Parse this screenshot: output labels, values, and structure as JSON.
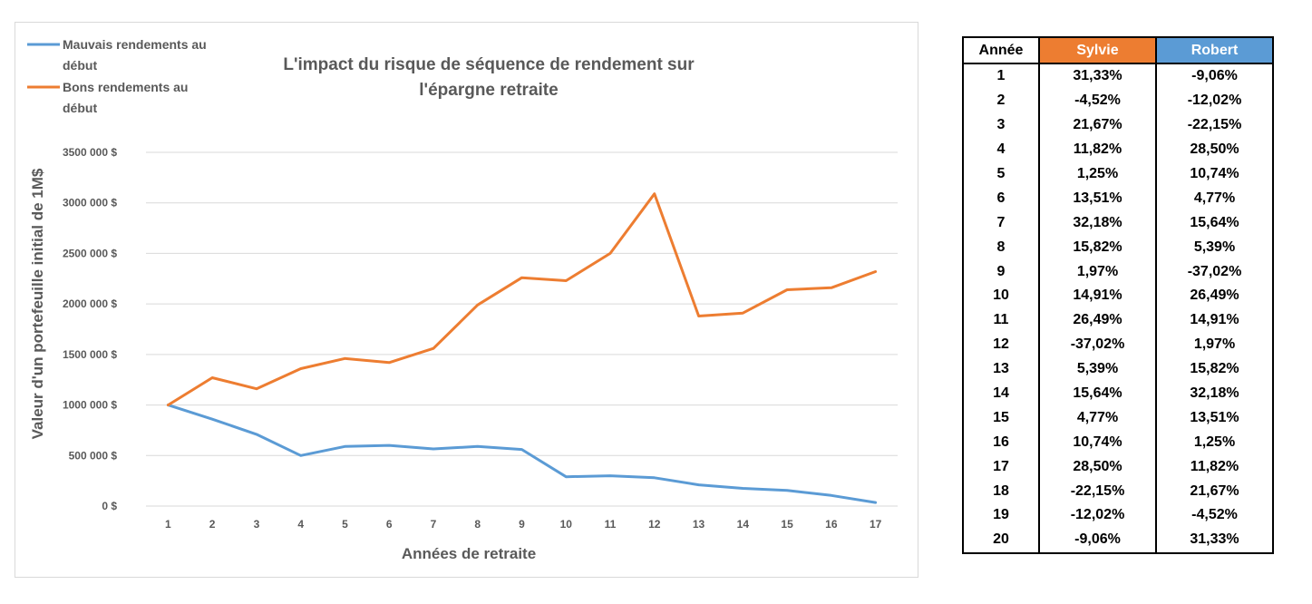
{
  "chart_data": {
    "type": "line",
    "title": "L'impact du risque de séquence de rendement sur l'épargne retraite",
    "title_lines": [
      "L'impact du risque de séquence de rendement sur",
      "l'épargne retraite"
    ],
    "xlabel": "Années de retraite",
    "ylabel": "Valeur d'un portefeuille initial de 1M$",
    "x": [
      1,
      2,
      3,
      4,
      5,
      6,
      7,
      8,
      9,
      10,
      11,
      12,
      13,
      14,
      15,
      16,
      17
    ],
    "ylim": [
      0,
      3500000
    ],
    "yticks": [
      0,
      500000,
      1000000,
      1500000,
      2000000,
      2500000,
      3000000,
      3500000
    ],
    "ytick_labels": [
      "0 $",
      "500 000 $",
      "1000 000 $",
      "1500 000 $",
      "2000 000 $",
      "2500 000 $",
      "3000 000 $",
      "3500 000 $"
    ],
    "grid": true,
    "legend_position": "top-left",
    "series": [
      {
        "name": "Mauvais rendements au début",
        "legend_lines": [
          "Mauvais rendements au",
          "début"
        ],
        "color": "#5b9bd5",
        "values": [
          1000000,
          860000,
          710000,
          500000,
          590000,
          600000,
          565000,
          590000,
          560000,
          290000,
          300000,
          280000,
          210000,
          175000,
          155000,
          105000,
          35000
        ]
      },
      {
        "name": "Bons rendements au début",
        "legend_lines": [
          "Bons rendements au",
          "début"
        ],
        "color": "#ed7d31",
        "values": [
          1000000,
          1270000,
          1160000,
          1360000,
          1460000,
          1420000,
          1560000,
          1990000,
          2260000,
          2230000,
          2500000,
          3090000,
          1880000,
          1910000,
          2140000,
          2160000,
          2320000
        ]
      }
    ]
  },
  "table": {
    "headers": {
      "year": "Année",
      "sylvie": "Sylvie",
      "robert": "Robert"
    },
    "colors": {
      "sylvie": "#ed7d31",
      "robert": "#5b9bd5"
    },
    "rows": [
      {
        "year": "1",
        "sylvie": "31,33%",
        "robert": "-9,06%"
      },
      {
        "year": "2",
        "sylvie": "-4,52%",
        "robert": "-12,02%"
      },
      {
        "year": "3",
        "sylvie": "21,67%",
        "robert": "-22,15%"
      },
      {
        "year": "4",
        "sylvie": "11,82%",
        "robert": "28,50%"
      },
      {
        "year": "5",
        "sylvie": "1,25%",
        "robert": "10,74%"
      },
      {
        "year": "6",
        "sylvie": "13,51%",
        "robert": "4,77%"
      },
      {
        "year": "7",
        "sylvie": "32,18%",
        "robert": "15,64%"
      },
      {
        "year": "8",
        "sylvie": "15,82%",
        "robert": "5,39%"
      },
      {
        "year": "9",
        "sylvie": "1,97%",
        "robert": "-37,02%"
      },
      {
        "year": "10",
        "sylvie": "14,91%",
        "robert": "26,49%"
      },
      {
        "year": "11",
        "sylvie": "26,49%",
        "robert": "14,91%"
      },
      {
        "year": "12",
        "sylvie": "-37,02%",
        "robert": "1,97%"
      },
      {
        "year": "13",
        "sylvie": "5,39%",
        "robert": "15,82%"
      },
      {
        "year": "14",
        "sylvie": "15,64%",
        "robert": "32,18%"
      },
      {
        "year": "15",
        "sylvie": "4,77%",
        "robert": "13,51%"
      },
      {
        "year": "16",
        "sylvie": "10,74%",
        "robert": "1,25%"
      },
      {
        "year": "17",
        "sylvie": "28,50%",
        "robert": "11,82%"
      },
      {
        "year": "18",
        "sylvie": "-22,15%",
        "robert": "21,67%"
      },
      {
        "year": "19",
        "sylvie": "-12,02%",
        "robert": "-4,52%"
      },
      {
        "year": "20",
        "sylvie": "-9,06%",
        "robert": "31,33%"
      }
    ]
  }
}
